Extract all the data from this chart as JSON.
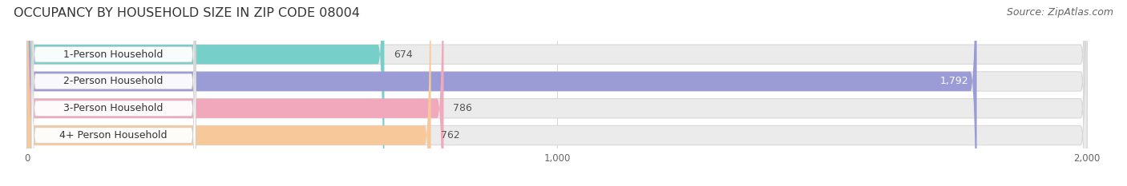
{
  "title": "OCCUPANCY BY HOUSEHOLD SIZE IN ZIP CODE 08004",
  "source": "Source: ZipAtlas.com",
  "categories": [
    "1-Person Household",
    "2-Person Household",
    "3-Person Household",
    "4+ Person Household"
  ],
  "values": [
    674,
    1792,
    786,
    762
  ],
  "bar_colors": [
    "#76cfc9",
    "#9b9bd6",
    "#f2a8bc",
    "#f7c99a"
  ],
  "bg_bar_color": "#ebebeb",
  "xlim": [
    -30,
    2050
  ],
  "xdata_min": 0,
  "xdata_max": 2000,
  "xticks": [
    0,
    1000,
    2000
  ],
  "xtick_labels": [
    "0",
    "1,000",
    "2,000"
  ],
  "value_label_inside": [
    false,
    true,
    false,
    false
  ],
  "bg_color": "#ffffff",
  "title_fontsize": 11.5,
  "source_fontsize": 9,
  "label_fontsize": 9,
  "value_fontsize": 9,
  "bar_height": 0.72,
  "bar_gap": 0.05,
  "figsize": [
    14.06,
    2.33
  ]
}
